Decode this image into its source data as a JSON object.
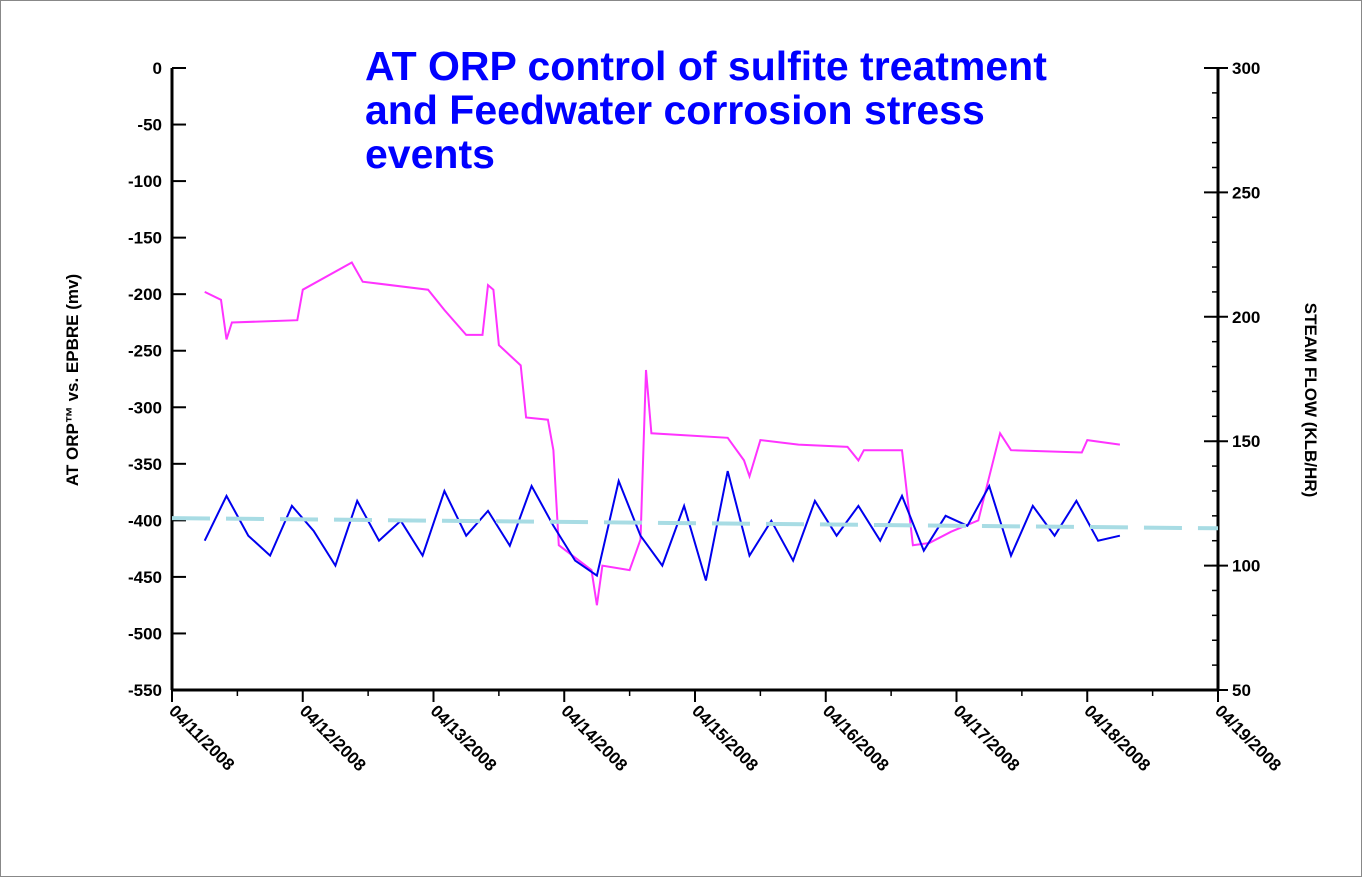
{
  "chart_data": {
    "type": "line",
    "title": "AT ORP control of sulfite treatment and Feedwater corrosion stress events",
    "y_label": "AT ORP™ vs. EPBRE (mv)",
    "y2_label": "STEAM FLOW (KLB/HR)",
    "xlim": [
      "04/11/2008",
      "04/19/2008"
    ],
    "xticks": [
      "04/11/2008",
      "04/12/2008",
      "04/13/2008",
      "04/14/2008",
      "04/15/2008",
      "04/16/2008",
      "04/17/2008",
      "04/18/2008",
      "04/19/2008"
    ],
    "ylim": [
      -550,
      0
    ],
    "yticks": [
      0,
      -50,
      -100,
      -150,
      -200,
      -250,
      -300,
      -350,
      -400,
      -450,
      -500,
      -550
    ],
    "y2lim": [
      50,
      300
    ],
    "y2ticks": [
      300,
      250,
      200,
      150,
      100,
      50
    ],
    "series": [
      {
        "color": "#ff33ff",
        "axis": "y",
        "dashed": false,
        "x": [
          "04/11/2008 06:00",
          "04/11/2008 09:00",
          "04/11/2008 10:00",
          "04/11/2008 11:00",
          "04/11/2008 23:00",
          "04/12/2008 00:00",
          "04/12/2008 09:00",
          "04/12/2008 11:00",
          "04/12/2008 23:00",
          "04/13/2008 02:00",
          "04/13/2008 06:00",
          "04/13/2008 09:00",
          "04/13/2008 10:00",
          "04/13/2008 11:00",
          "04/13/2008 12:00",
          "04/13/2008 16:00",
          "04/13/2008 17:00",
          "04/13/2008 21:00",
          "04/13/2008 22:00",
          "04/13/2008 23:00",
          "04/14/2008 05:00",
          "04/14/2008 06:00",
          "04/14/2008 07:00",
          "04/14/2008 12:00",
          "04/14/2008 14:00",
          "04/14/2008 15:00",
          "04/14/2008 16:00",
          "04/15/2008 06:00",
          "04/15/2008 09:00",
          "04/15/2008 10:00",
          "04/15/2008 12:00",
          "04/15/2008 19:00",
          "04/16/2008 04:00",
          "04/16/2008 06:00",
          "04/16/2008 07:00",
          "04/16/2008 14:00",
          "04/16/2008 16:00",
          "04/16/2008 19:00",
          "04/16/2008 23:00",
          "04/17/2008 04:00",
          "04/17/2008 08:00",
          "04/17/2008 10:00",
          "04/17/2008 23:00",
          "04/18/2008 00:00",
          "04/18/2008 06:00"
        ],
        "values": [
          -198,
          -205,
          -240,
          -225,
          -223,
          -196,
          -172,
          -189,
          -196,
          -214,
          -236,
          -236,
          -192,
          -196,
          -245,
          -263,
          -309,
          -311,
          -338,
          -422,
          -444,
          -475,
          -440,
          -444,
          -417,
          -267,
          -323,
          -327,
          -347,
          -361,
          -329,
          -333,
          -335,
          -347,
          -338,
          -338,
          -422,
          -420,
          -410,
          -400,
          -323,
          -338,
          -340,
          -329,
          -333
        ]
      },
      {
        "color": "#0000ee",
        "axis": "y2",
        "dashed": false,
        "x": [
          "04/11/2008 06:00",
          "04/11/2008 10:00",
          "04/11/2008 14:00",
          "04/11/2008 18:00",
          "04/11/2008 22:00",
          "04/12/2008 02:00",
          "04/12/2008 06:00",
          "04/12/2008 10:00",
          "04/12/2008 14:00",
          "04/12/2008 18:00",
          "04/12/2008 22:00",
          "04/13/2008 02:00",
          "04/13/2008 06:00",
          "04/13/2008 10:00",
          "04/13/2008 14:00",
          "04/13/2008 18:00",
          "04/13/2008 22:00",
          "04/14/2008 02:00",
          "04/14/2008 06:00",
          "04/14/2008 10:00",
          "04/14/2008 14:00",
          "04/14/2008 18:00",
          "04/14/2008 22:00",
          "04/15/2008 02:00",
          "04/15/2008 06:00",
          "04/15/2008 10:00",
          "04/15/2008 14:00",
          "04/15/2008 18:00",
          "04/15/2008 22:00",
          "04/16/2008 02:00",
          "04/16/2008 06:00",
          "04/16/2008 10:00",
          "04/16/2008 14:00",
          "04/16/2008 18:00",
          "04/16/2008 22:00",
          "04/17/2008 02:00",
          "04/17/2008 06:00",
          "04/17/2008 10:00",
          "04/17/2008 14:00",
          "04/17/2008 18:00",
          "04/17/2008 22:00",
          "04/18/2008 02:00",
          "04/18/2008 06:00"
        ],
        "values": [
          110,
          128,
          112,
          104,
          124,
          114,
          100,
          126,
          110,
          118,
          104,
          130,
          112,
          122,
          108,
          132,
          116,
          102,
          96,
          134,
          112,
          100,
          124,
          94,
          138,
          104,
          118,
          102,
          126,
          112,
          124,
          110,
          128,
          106,
          120,
          116,
          132,
          104,
          124,
          112,
          126,
          110,
          112
        ]
      },
      {
        "color": "#a8dce4",
        "axis": "y",
        "dashed": true,
        "x": [
          "04/11/2008 00:00",
          "04/19/2008 00:00"
        ],
        "values": [
          -398,
          -407
        ]
      }
    ]
  }
}
